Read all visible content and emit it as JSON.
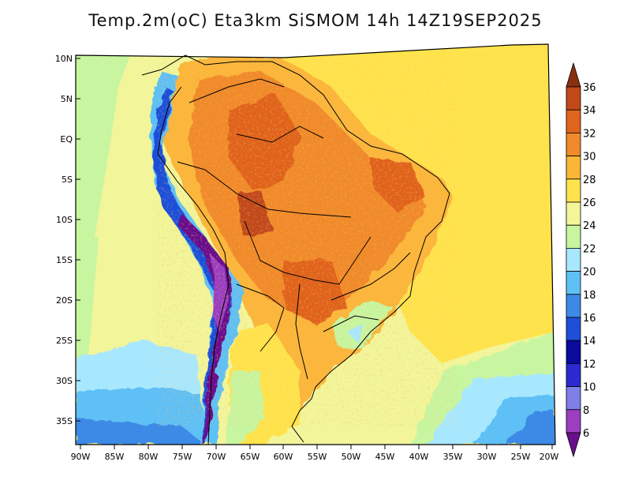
{
  "title": "Temp.2m(oC) Eta3km SiSMOM 14h 14Z19SEP2025",
  "lat_labels": [
    "10N",
    "5N",
    "EQ",
    "5S",
    "10S",
    "15S",
    "20S",
    "25S",
    "30S",
    "35S"
  ],
  "lon_labels": [
    "90W",
    "85W",
    "80W",
    "75W",
    "70W",
    "65W",
    "60W",
    "55W",
    "50W",
    "45W",
    "40W",
    "35W",
    "30W",
    "25W",
    "20W"
  ],
  "colorbar": {
    "labels": [
      "6",
      "8",
      "10",
      "12",
      "14",
      "16",
      "18",
      "20",
      "22",
      "24",
      "26",
      "28",
      "30",
      "32",
      "34",
      "36"
    ],
    "colors": [
      "#6a0f8c",
      "#9b3fc0",
      "#7f7fe8",
      "#2a2ad0",
      "#0a0a9c",
      "#1f4fd9",
      "#3c8ae6",
      "#5fc0f5",
      "#a8e8ff",
      "#c8f5a0",
      "#f2f59a",
      "#ffe34d",
      "#fbb63a",
      "#f08a2a",
      "#e0641e",
      "#c24a1a",
      "#8a2f10"
    ]
  }
}
